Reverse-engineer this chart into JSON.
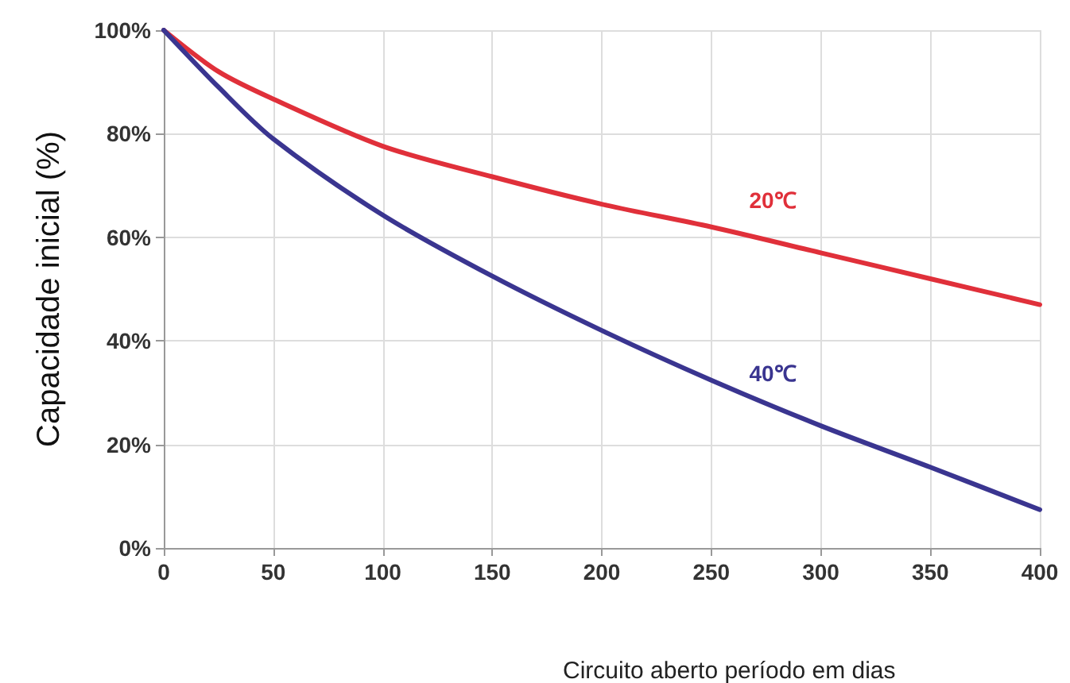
{
  "chart_data": {
    "type": "line",
    "xlabel": "Circuito aberto período em dias",
    "ylabel": "Capacidade inicial (%)",
    "x": [
      0,
      25,
      50,
      100,
      150,
      200,
      250,
      300,
      350,
      400
    ],
    "series": [
      {
        "name": "20℃",
        "color": "#e0303a",
        "values": [
          100,
          92,
          86.7,
          77.6,
          71.7,
          66.4,
          62,
          57,
          52,
          47
        ]
      },
      {
        "name": "40℃",
        "color": "#3a3590",
        "values": [
          100,
          89,
          79,
          64.3,
          52.5,
          42,
          32.4,
          23.6,
          15.6,
          7.4
        ]
      }
    ],
    "xlim": [
      0,
      400
    ],
    "xticks": [
      0,
      50,
      100,
      150,
      200,
      250,
      300,
      350,
      400
    ],
    "ylim": [
      0,
      100
    ],
    "yticks": [
      {
        "value": 0,
        "label": "0%"
      },
      {
        "value": 20,
        "label": "20%"
      },
      {
        "value": 40,
        "label": "40%"
      },
      {
        "value": 60,
        "label": "60%"
      },
      {
        "value": 80,
        "label": "80%"
      },
      {
        "value": 100,
        "label": "100%"
      }
    ],
    "grid": true,
    "legend": false,
    "marker": "none",
    "line_style": "solid"
  }
}
